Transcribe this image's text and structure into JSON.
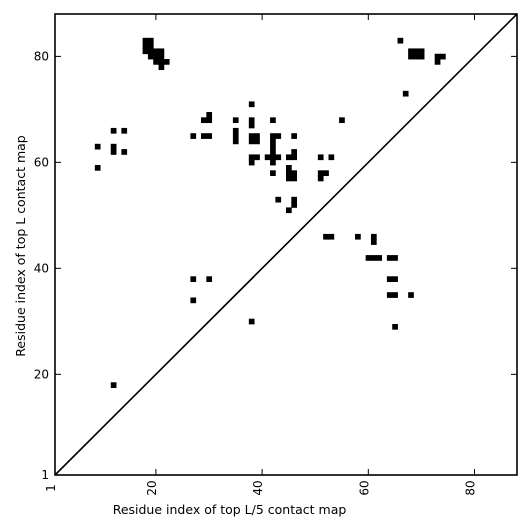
{
  "chart_data": {
    "type": "heatmap",
    "xlabel": "Residue index of top L/5 contact map",
    "ylabel": "Residue index of top L contact map",
    "xlim": [
      1,
      88
    ],
    "ylim": [
      1,
      88
    ],
    "x_ticks": [
      1,
      20,
      40,
      60,
      80
    ],
    "y_ticks": [
      1,
      20,
      40,
      60,
      80
    ],
    "x_tick_labels": [
      "1",
      "20",
      "40",
      "60",
      "80"
    ],
    "y_tick_labels": [
      "1",
      "20",
      "40",
      "60",
      "80"
    ],
    "x_tick_rotation": -90,
    "cell_color": "#000000",
    "diagonal": true,
    "grid": false,
    "contacts_top_L": [
      [
        9,
        63
      ],
      [
        9,
        59
      ],
      [
        12,
        66
      ],
      [
        12,
        63
      ],
      [
        12,
        62
      ],
      [
        14,
        66
      ],
      [
        14,
        62
      ],
      [
        12,
        18
      ],
      [
        18,
        83
      ],
      [
        18,
        82
      ],
      [
        18,
        81
      ],
      [
        19,
        83
      ],
      [
        19,
        82
      ],
      [
        19,
        81
      ],
      [
        19,
        80
      ],
      [
        20,
        81
      ],
      [
        20,
        80
      ],
      [
        20,
        79
      ],
      [
        21,
        81
      ],
      [
        21,
        80
      ],
      [
        21,
        79
      ],
      [
        21,
        78
      ],
      [
        22,
        79
      ],
      [
        27,
        65
      ],
      [
        29,
        68
      ],
      [
        30,
        69
      ],
      [
        30,
        68
      ],
      [
        29,
        65
      ],
      [
        30,
        65
      ],
      [
        27,
        38
      ],
      [
        30,
        38
      ],
      [
        27,
        34
      ],
      [
        35,
        68
      ],
      [
        35,
        66
      ],
      [
        35,
        65
      ],
      [
        35,
        64
      ],
      [
        38,
        71
      ],
      [
        38,
        68
      ],
      [
        38,
        67
      ],
      [
        38,
        65
      ],
      [
        38,
        64
      ],
      [
        39,
        65
      ],
      [
        39,
        64
      ],
      [
        38,
        61
      ],
      [
        38,
        60
      ],
      [
        39,
        61
      ],
      [
        38,
        30
      ],
      [
        41,
        61
      ],
      [
        42,
        68
      ],
      [
        42,
        65
      ],
      [
        42,
        64
      ],
      [
        42,
        63
      ],
      [
        42,
        62
      ],
      [
        42,
        61
      ],
      [
        42,
        60
      ],
      [
        42,
        58
      ],
      [
        43,
        65
      ],
      [
        43,
        61
      ],
      [
        43,
        53
      ],
      [
        45,
        61
      ],
      [
        45,
        59
      ],
      [
        45,
        58
      ],
      [
        45,
        57
      ],
      [
        45,
        51
      ],
      [
        46,
        65
      ],
      [
        46,
        62
      ],
      [
        46,
        61
      ],
      [
        46,
        58
      ],
      [
        46,
        57
      ],
      [
        46,
        53
      ],
      [
        46,
        52
      ],
      [
        51,
        61
      ],
      [
        51,
        58
      ],
      [
        51,
        57
      ],
      [
        52,
        58
      ],
      [
        53,
        61
      ],
      [
        55,
        68
      ],
      [
        52,
        46
      ],
      [
        53,
        46
      ],
      [
        58,
        46
      ],
      [
        60,
        42
      ],
      [
        61,
        46
      ],
      [
        61,
        45
      ],
      [
        61,
        42
      ],
      [
        62,
        42
      ],
      [
        64,
        42
      ],
      [
        65,
        42
      ],
      [
        64,
        38
      ],
      [
        65,
        38
      ],
      [
        64,
        35
      ],
      [
        65,
        35
      ],
      [
        65,
        29
      ],
      [
        68,
        35
      ],
      [
        66,
        83
      ],
      [
        67,
        73
      ],
      [
        68,
        81
      ],
      [
        68,
        80
      ],
      [
        69,
        81
      ],
      [
        69,
        80
      ],
      [
        70,
        81
      ],
      [
        70,
        80
      ],
      [
        73,
        80
      ],
      [
        73,
        79
      ],
      [
        74,
        80
      ]
    ]
  }
}
